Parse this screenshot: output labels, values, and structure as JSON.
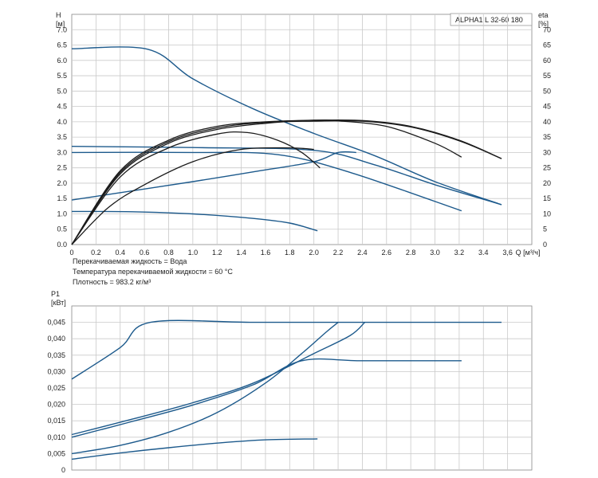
{
  "chart_data": [
    {
      "type": "line",
      "title": "ALPHA1 L 32-60  180",
      "xlabel": "Q [м³/ч]",
      "ylabel": "H [м]",
      "ylabel_line1": "H",
      "ylabel_line2": "[м]",
      "y2label_line1": "eta",
      "y2label_line2": "[%]",
      "xlim": [
        0,
        3.8
      ],
      "ylim": [
        0,
        7.5
      ],
      "y2lim": [
        0,
        75
      ],
      "x_ticks": [
        "0",
        "0.2",
        "0.4",
        "0.6",
        "0.8",
        "1.0",
        "1.2",
        "1.4",
        "1.6",
        "1.8",
        "2.0",
        "2.2",
        "2.4",
        "2.6",
        "2.8",
        "3.0",
        "3.2",
        "3.4",
        "3.6"
      ],
      "x_tick_last": "3,6",
      "x_unit_label": "Q [м³/ч]",
      "y_ticks": [
        "0.0",
        "0.5",
        "1.0",
        "1.5",
        "2.0",
        "2.5",
        "3.0",
        "3.5",
        "4.0",
        "4.5",
        "5.0",
        "5.5",
        "6.0",
        "6.5",
        "7.0"
      ],
      "y2_ticks": [
        "0",
        "5",
        "10",
        "15",
        "20",
        "25",
        "30",
        "35",
        "40",
        "45",
        "50",
        "55",
        "60",
        "65",
        "70"
      ],
      "grid": true,
      "series": [
        {
          "kind": "head",
          "points": [
            [
              0,
              6.38
            ],
            [
              0.63,
              6.36
            ],
            [
              1.0,
              5.4
            ],
            [
              1.5,
              4.42
            ],
            [
              2.0,
              3.62
            ],
            [
              2.5,
              2.9
            ],
            [
              3.0,
              2.05
            ],
            [
              3.55,
              1.3
            ]
          ]
        },
        {
          "kind": "head",
          "points": [
            [
              0,
              3.2
            ],
            [
              1.0,
              3.16
            ],
            [
              2.0,
              3.07
            ],
            [
              2.5,
              2.6
            ],
            [
              3.0,
              1.95
            ],
            [
              3.55,
              1.3
            ]
          ]
        },
        {
          "kind": "head",
          "points": [
            [
              0,
              3.0
            ],
            [
              1.0,
              3.0
            ],
            [
              1.7,
              2.93
            ],
            [
              2.3,
              2.35
            ],
            [
              3.22,
              1.1
            ]
          ]
        },
        {
          "kind": "head",
          "points": [
            [
              0,
              1.45
            ],
            [
              0.5,
              1.75
            ],
            [
              1.0,
              2.05
            ],
            [
              1.5,
              2.37
            ],
            [
              2.0,
              2.7
            ],
            [
              2.2,
              3.0
            ],
            [
              2.35,
              3.0
            ]
          ]
        },
        {
          "kind": "head",
          "points": [
            [
              0,
              1.08
            ],
            [
              0.5,
              1.07
            ],
            [
              1.0,
              1.0
            ],
            [
              1.5,
              0.85
            ],
            [
              1.8,
              0.7
            ],
            [
              2.03,
              0.45
            ]
          ]
        },
        {
          "kind": "efficiency",
          "points": [
            [
              0,
              0
            ],
            [
              0.4,
              22
            ],
            [
              0.8,
              31.5
            ],
            [
              1.2,
              36
            ],
            [
              1.45,
              36.5
            ],
            [
              1.7,
              34
            ],
            [
              1.9,
              30
            ],
            [
              2.05,
              25
            ]
          ]
        },
        {
          "kind": "efficiency",
          "points": [
            [
              0,
              0
            ],
            [
              0.4,
              23
            ],
            [
              0.8,
              33
            ],
            [
              1.2,
              37.5
            ],
            [
              1.6,
              39.5
            ],
            [
              2.0,
              40.5
            ],
            [
              2.2,
              40.3
            ],
            [
              2.6,
              38.5
            ],
            [
              3.0,
              33
            ],
            [
              3.22,
              28.5
            ]
          ]
        },
        {
          "kind": "efficiency",
          "points": [
            [
              0,
              0
            ],
            [
              0.4,
              24
            ],
            [
              0.8,
              34
            ],
            [
              1.2,
              38.5
            ],
            [
              1.6,
              40
            ],
            [
              2.0,
              40.5
            ],
            [
              2.4,
              40.4
            ],
            [
              2.8,
              38.5
            ],
            [
              3.2,
              34
            ],
            [
              3.55,
              28
            ]
          ]
        },
        {
          "kind": "efficiency",
          "points": [
            [
              0,
              0
            ],
            [
              0.4,
              23.5
            ],
            [
              0.8,
              33.5
            ],
            [
              1.2,
              38
            ],
            [
              1.6,
              39.8
            ],
            [
              2.0,
              40.2
            ],
            [
              2.4,
              40.2
            ],
            [
              2.8,
              38.3
            ],
            [
              3.2,
              33.8
            ],
            [
              3.55,
              28
            ]
          ]
        },
        {
          "kind": "efficiency",
          "points": [
            [
              0,
              0
            ],
            [
              0.3,
              12
            ],
            [
              0.6,
              19.5
            ],
            [
              1.0,
              27
            ],
            [
              1.4,
              31
            ],
            [
              1.8,
              31.5
            ],
            [
              2.0,
              31
            ]
          ]
        }
      ],
      "notes": [
        "Перекачиваемая жидкость = Вода",
        "Температура перекачиваемой жидкости = 60 °C",
        "Плотность = 983.2 кг/м³"
      ]
    },
    {
      "type": "line",
      "xlim": [
        0,
        3.8
      ],
      "ylim": [
        0,
        0.05
      ],
      "ylabel_line1": "P1",
      "ylabel_line2": "[кВт]",
      "y_ticks": [
        "0",
        "0,005",
        "0,010",
        "0,015",
        "0,020",
        "0,025",
        "0,030",
        "0,035",
        "0,040",
        "0,045"
      ],
      "grid": true,
      "series": [
        {
          "points": [
            [
              0,
              0.0277
            ],
            [
              0.4,
              0.0373
            ],
            [
              0.65,
              0.045
            ],
            [
              1.5,
              0.045
            ],
            [
              2.5,
              0.045
            ],
            [
              3.55,
              0.045
            ]
          ]
        },
        {
          "points": [
            [
              0,
              0.0108
            ],
            [
              0.5,
              0.0155
            ],
            [
              1.0,
              0.0205
            ],
            [
              1.5,
              0.0265
            ],
            [
              2.0,
              0.0355
            ],
            [
              2.3,
              0.041
            ],
            [
              2.42,
              0.045
            ]
          ]
        },
        {
          "points": [
            [
              0,
              0.01
            ],
            [
              0.5,
              0.0148
            ],
            [
              1.0,
              0.0198
            ],
            [
              1.5,
              0.026
            ],
            [
              1.9,
              0.0333
            ],
            [
              2.4,
              0.0333
            ],
            [
              3.22,
              0.0333
            ]
          ]
        },
        {
          "points": [
            [
              0,
              0.005
            ],
            [
              0.4,
              0.0075
            ],
            [
              0.8,
              0.0115
            ],
            [
              1.2,
              0.0175
            ],
            [
              1.6,
              0.0265
            ],
            [
              1.9,
              0.0355
            ],
            [
              2.1,
              0.042
            ],
            [
              2.2,
              0.045
            ]
          ]
        },
        {
          "points": [
            [
              0,
              0.0033
            ],
            [
              0.4,
              0.0052
            ],
            [
              0.8,
              0.0068
            ],
            [
              1.2,
              0.0082
            ],
            [
              1.6,
              0.0092
            ],
            [
              2.03,
              0.0095
            ]
          ]
        }
      ]
    }
  ]
}
